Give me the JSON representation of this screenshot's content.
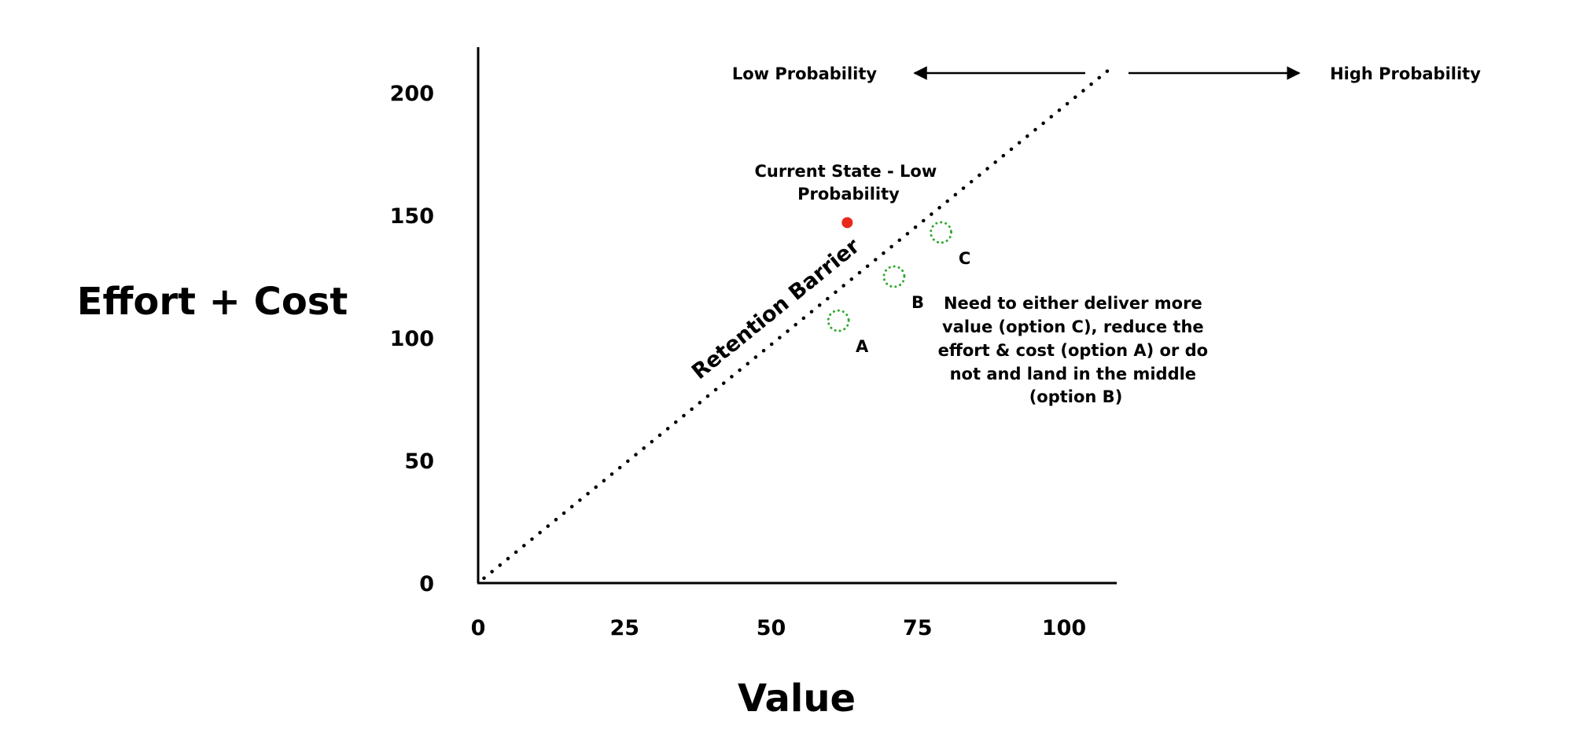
{
  "chart_data": {
    "type": "scatter",
    "xlabel": "Value",
    "ylabel": "Effort + Cost",
    "xlim": [
      0,
      110
    ],
    "ylim": [
      0,
      220
    ],
    "x_ticks": [
      "0",
      "25",
      "50",
      "75",
      "100"
    ],
    "y_ticks": [
      "0",
      "50",
      "100",
      "150",
      "200"
    ],
    "grid": false,
    "barrier": {
      "label": "Retention Barrier",
      "from": [
        1,
        2
      ],
      "to": [
        108,
        210
      ]
    },
    "current_state": {
      "x": 63,
      "y": 147,
      "color": "#e8291c",
      "label_lines": [
        "Current State - Low",
        "Probability"
      ]
    },
    "options": [
      {
        "label": "A",
        "x": 61.5,
        "y": 107,
        "color": "#2fa82f"
      },
      {
        "label": "B",
        "x": 71,
        "y": 125,
        "color": "#2fa82f"
      },
      {
        "label": "C",
        "x": 79,
        "y": 143,
        "color": "#2fa82f"
      }
    ],
    "low_probability_label": "Low Probability",
    "high_probability_label": "High Probability",
    "note_lines": [
      "Need to either deliver more",
      "value (option C), reduce the",
      "effort & cost (option A) or do",
      "not and land in the middle",
      "(option B)"
    ]
  }
}
